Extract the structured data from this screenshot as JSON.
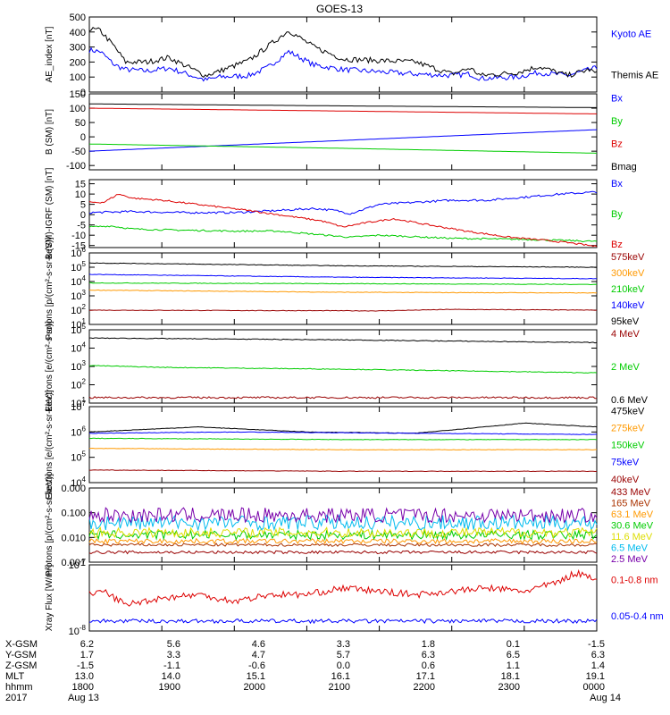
{
  "title": "GOES-13",
  "colors": {
    "black": "#000000",
    "blue": "#0000ff",
    "red": "#dd0000",
    "green": "#00cc00",
    "orange": "#ff9900",
    "cyan": "#00bbee",
    "yellow": "#dddd00",
    "purple": "#7700aa",
    "darkred": "#990000",
    "brown": "#aa3300"
  },
  "chart_data": [
    {
      "type": "line",
      "ylabel": "AE_index [nT]",
      "ylim": [
        0,
        500
      ],
      "yticks": [
        "500",
        "400",
        "300",
        "200",
        "100",
        "0"
      ],
      "series": [
        {
          "name": "Kyoto AE",
          "color": "blue",
          "x": [
            0,
            0.15,
            0.35,
            0.5,
            0.8,
            1.1,
            1.6,
            1.8,
            2.2,
            2.45,
            2.75,
            3.1,
            3.5,
            4.5,
            5.0,
            5.25,
            5.4,
            5.9,
            6.2,
            6.6,
            6.9,
            7.0
          ],
          "values": [
            280,
            270,
            180,
            150,
            140,
            160,
            80,
            100,
            110,
            160,
            270,
            180,
            150,
            120,
            110,
            120,
            90,
            100,
            130,
            110,
            150,
            160
          ]
        },
        {
          "name": "Themis AE",
          "color": "black",
          "x": [
            0,
            0.15,
            0.35,
            0.5,
            0.8,
            1.1,
            1.6,
            1.8,
            2.2,
            2.45,
            2.75,
            3.1,
            3.5,
            4.5,
            5.0,
            5.25,
            5.4,
            5.9,
            6.2,
            6.6,
            6.9,
            7.0
          ],
          "values": [
            420,
            410,
            300,
            200,
            200,
            230,
            110,
            140,
            210,
            300,
            410,
            300,
            220,
            200,
            120,
            160,
            110,
            130,
            170,
            110,
            150,
            120
          ]
        }
      ]
    },
    {
      "type": "line",
      "ylabel": "B (SM) [nT]",
      "ylim": [
        -115,
        150
      ],
      "yticks": [
        "150",
        "100",
        "50",
        "0",
        "-50",
        "-100"
      ],
      "series": [
        {
          "name": "Bx",
          "color": "blue",
          "x": [
            0,
            7
          ],
          "values": [
            -50,
            25
          ]
        },
        {
          "name": "By",
          "color": "green",
          "x": [
            0,
            3.5,
            7
          ],
          "values": [
            -25,
            -40,
            -57
          ]
        },
        {
          "name": "Bz",
          "color": "red",
          "x": [
            0,
            3.5,
            7
          ],
          "values": [
            100,
            90,
            80
          ]
        },
        {
          "name": "Bmag",
          "color": "black",
          "x": [
            0,
            3.5,
            7
          ],
          "values": [
            115,
            108,
            102
          ]
        }
      ]
    },
    {
      "type": "line",
      "ylabel": "B (SM)-IGRF (SM) [nT]",
      "ylim": [
        -16,
        17
      ],
      "yticks": [
        "15",
        "10",
        "5",
        "0",
        "-5",
        "-10",
        "-15"
      ],
      "series": [
        {
          "name": "Bx",
          "color": "blue",
          "x": [
            0,
            0.6,
            1.2,
            2.0,
            2.6,
            3.1,
            3.4,
            3.6,
            4.0,
            5.0,
            5.5,
            6.0,
            6.5,
            7.0
          ],
          "values": [
            1,
            1.5,
            1,
            1,
            2,
            3,
            2,
            0.5,
            5,
            7,
            7,
            8.5,
            10,
            11
          ]
        },
        {
          "name": "By",
          "color": "green",
          "x": [
            0,
            0.3,
            0.6,
            1.2,
            2.0,
            2.6,
            3.1,
            3.6,
            4.0,
            5.0,
            6.0,
            7.0
          ],
          "values": [
            -6,
            -5.5,
            -7,
            -7.5,
            -8,
            -8,
            -9.5,
            -11,
            -10,
            -11.5,
            -12,
            -13
          ]
        },
        {
          "name": "Bz",
          "color": "red",
          "x": [
            0,
            0.2,
            0.4,
            0.6,
            1.0,
            1.6,
            2.2,
            2.8,
            3.2,
            3.5,
            3.8,
            4.2,
            4.6,
            5.2,
            5.8,
            6.3,
            6.7,
            7.0
          ],
          "values": [
            6,
            6,
            10,
            8,
            7,
            4.5,
            2,
            -1,
            -3,
            -6,
            -4,
            -2,
            -4.5,
            -8,
            -11,
            -12.5,
            -14,
            -15.5
          ]
        }
      ]
    },
    {
      "type": "line",
      "ylabel": "Protons [p/(cm²-s-sr-keV)]",
      "yscale": "log",
      "ylim": [
        1,
        6
      ],
      "yticks": [
        "10^6",
        "10^5",
        "10^4",
        "10^3",
        "10^2",
        "10^1"
      ],
      "series": [
        {
          "name": "575keV",
          "color": "darkred",
          "x": [
            0,
            4.0,
            5.0,
            7.0
          ],
          "values": [
            2.0,
            1.95,
            2.05,
            2.0
          ]
        },
        {
          "name": "300keV",
          "color": "orange",
          "x": [
            0,
            3.5,
            7.0
          ],
          "values": [
            3.4,
            3.25,
            3.2
          ]
        },
        {
          "name": "210keV",
          "color": "green",
          "x": [
            0,
            3.5,
            7.0
          ],
          "values": [
            3.9,
            3.85,
            3.8
          ]
        },
        {
          "name": "140keV",
          "color": "blue",
          "x": [
            0,
            3.5,
            7.0
          ],
          "values": [
            4.5,
            4.3,
            4.2
          ]
        },
        {
          "name": "95keV",
          "color": "black",
          "x": [
            0,
            3.5,
            7.0
          ],
          "values": [
            5.3,
            5.1,
            5.0
          ]
        }
      ]
    },
    {
      "type": "line",
      "ylabel": "Electrons [e/(cm²-s-sr)]",
      "yscale": "log",
      "ylim": [
        1,
        5
      ],
      "yticks": [
        "10^5",
        "10^4",
        "10^3",
        "10^2",
        "10^1"
      ],
      "series": [
        {
          "name": "4 MeV",
          "color": "darkred",
          "x": [
            0,
            3.5,
            7.0
          ],
          "values": [
            1.3,
            1.3,
            1.3
          ]
        },
        {
          "name": "2 MeV",
          "color": "green",
          "x": [
            0,
            1.0,
            3.5,
            7.0
          ],
          "values": [
            3.05,
            2.95,
            2.85,
            2.65
          ]
        },
        {
          "name": "0.6 MeV",
          "color": "black",
          "x": [
            0,
            3.5,
            7.0
          ],
          "values": [
            4.55,
            4.45,
            4.3
          ]
        }
      ]
    },
    {
      "type": "line",
      "ylabel": "Electrons [e/(cm²-s-sr-keV)]",
      "yscale": "log",
      "ylim": [
        4,
        7
      ],
      "yticks": [
        "10^7",
        "10^6",
        "10^5",
        "10^4"
      ],
      "series": [
        {
          "name": "475keV",
          "color": "black",
          "x": [
            0,
            1.5,
            3.0,
            4.5,
            6.0,
            7.0
          ],
          "values": [
            6.0,
            6.2,
            6.0,
            5.95,
            6.35,
            6.2
          ]
        },
        {
          "name": "275keV",
          "color": "orange",
          "x": [
            0,
            3.5,
            7.0
          ],
          "values": [
            5.35,
            5.3,
            5.3
          ]
        },
        {
          "name": "150keV",
          "color": "green",
          "x": [
            0,
            3.5,
            7.0
          ],
          "values": [
            5.75,
            5.7,
            5.7
          ]
        },
        {
          "name": "75keV",
          "color": "blue",
          "x": [
            0,
            2.0,
            4.5,
            7.0
          ],
          "values": [
            5.95,
            6.0,
            5.95,
            5.9
          ]
        },
        {
          "name": "40keV",
          "color": "darkred",
          "x": [
            0,
            3.5,
            7.0
          ],
          "values": [
            4.5,
            4.45,
            4.45
          ]
        }
      ]
    },
    {
      "type": "line",
      "ylabel": "Protons [p/(cm²-s-sr-keV)]",
      "yscale": "log",
      "ylim": [
        -3,
        0
      ],
      "yticks": [
        "0.000",
        "0.100",
        "0.010",
        "0.001"
      ],
      "series": [
        {
          "name": "433 MeV",
          "color": "darkred",
          "x": [
            0,
            7
          ],
          "values": [
            -2.6,
            -2.6
          ]
        },
        {
          "name": "165 MeV",
          "color": "brown",
          "x": [
            0,
            7
          ],
          "values": [
            -2.3,
            -2.3
          ]
        },
        {
          "name": "63.1 MeV",
          "color": "orange",
          "x": [
            0,
            7
          ],
          "values": [
            -2.15,
            -2.15
          ]
        },
        {
          "name": "30.6 MeV",
          "color": "green",
          "x": [
            0,
            7
          ],
          "values": [
            -1.9,
            -1.9
          ]
        },
        {
          "name": "11.6 MeV",
          "color": "yellow",
          "x": [
            0,
            7
          ],
          "values": [
            -1.8,
            -1.8
          ]
        },
        {
          "name": "6.5 MeV",
          "color": "cyan",
          "x": [
            0,
            7
          ],
          "values": [
            -1.4,
            -1.4
          ]
        },
        {
          "name": "2.5 MeV",
          "color": "purple",
          "x": [
            0,
            7
          ],
          "values": [
            -1.1,
            -1.1
          ]
        }
      ]
    },
    {
      "type": "line",
      "ylabel": "Xray Flux [W/m²]",
      "yscale": "log",
      "ylim": [
        -8,
        -7
      ],
      "yticks": [
        "10^-7",
        "10^-8"
      ],
      "series": [
        {
          "name": "0.1-0.8 nm",
          "color": "red",
          "x": [
            0,
            0.2,
            0.5,
            1.0,
            1.5,
            2.0,
            2.5,
            3.0,
            3.5,
            4.0,
            4.5,
            5.0,
            5.5,
            6.0,
            6.5,
            6.7,
            7.0
          ],
          "values": [
            -7.45,
            -7.4,
            -7.6,
            -7.5,
            -7.45,
            -7.55,
            -7.45,
            -7.45,
            -7.35,
            -7.4,
            -7.45,
            -7.4,
            -7.35,
            -7.4,
            -7.25,
            -7.12,
            -7.2
          ]
        },
        {
          "name": "0.05-0.4 nm",
          "color": "blue",
          "x": [
            0,
            3.5,
            7.0
          ],
          "values": [
            -7.85,
            -7.85,
            -7.85
          ]
        }
      ]
    }
  ],
  "xaxis": {
    "ticks": [
      0,
      1,
      2,
      3,
      4,
      5,
      6,
      7
    ],
    "rows": [
      {
        "label": "X-GSM",
        "values": [
          "6.2",
          "5.6",
          "4.6",
          "3.3",
          "1.8",
          "0.1",
          "-1.5"
        ]
      },
      {
        "label": "Y-GSM",
        "values": [
          "1.7",
          "3.3",
          "4.7",
          "5.7",
          "6.3",
          "6.5",
          "6.3"
        ]
      },
      {
        "label": "Z-GSM",
        "values": [
          "-1.5",
          "-1.1",
          "-0.6",
          "0.0",
          "0.6",
          "1.1",
          "1.4"
        ]
      },
      {
        "label": "MLT",
        "values": [
          "13.0",
          "14.0",
          "15.1",
          "16.1",
          "17.1",
          "18.1",
          "19.1"
        ]
      },
      {
        "label": "hhmm",
        "values": [
          "1800",
          "1900",
          "2000",
          "2100",
          "2200",
          "2300",
          "0000"
        ]
      },
      {
        "label": "2017",
        "values": [
          "Aug 13",
          "",
          "",
          "",
          "",
          "",
          "Aug 14"
        ]
      }
    ]
  }
}
